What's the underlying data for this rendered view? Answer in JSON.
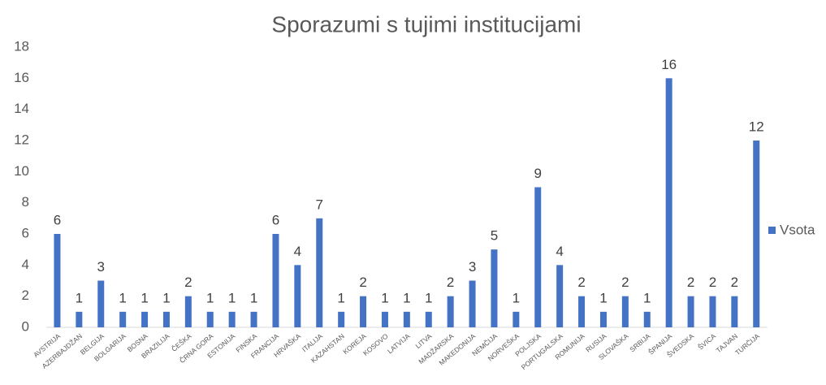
{
  "chart_data": {
    "type": "bar",
    "title": "Sporazumi s tujimi institucijami",
    "categories": [
      "AVSTRIJA",
      "AZERBAJDŽAN",
      "BELGIJA",
      "BOLGARIJA",
      "BOSNA",
      "BRAZILIJA",
      "ČEŠKA",
      "ČRNA GORA",
      "ESTONIJA",
      "FINSKA",
      "FRANCIJA",
      "HRVAŠKA",
      "ITALIJA",
      "KAZAHSTAN",
      "KOREJA",
      "KOSOVO",
      "LATVIJA",
      "LITVA",
      "MADŽARSKA",
      "MAKEDONIJA",
      "NEMČIJA",
      "NORVEŠKA",
      "POLJSKA",
      "PORTUGALSKA",
      "ROMUNIJA",
      "RUSIJA",
      "SLOVAŠKA",
      "SRBIJA",
      "ŠPANIJA",
      "ŠVEDSKA",
      "ŠVICA",
      "TAJVAN",
      "TURČIJA"
    ],
    "series": [
      {
        "name": "Vsota",
        "color": "#4472c4",
        "values": [
          6,
          1,
          3,
          1,
          1,
          1,
          2,
          1,
          1,
          1,
          6,
          4,
          7,
          1,
          2,
          1,
          1,
          1,
          2,
          3,
          5,
          1,
          9,
          4,
          2,
          1,
          2,
          1,
          16,
          2,
          2,
          2,
          12
        ]
      }
    ],
    "ylim": [
      0,
      18
    ],
    "yticks": [
      0,
      2,
      4,
      6,
      8,
      10,
      12,
      14,
      16,
      18
    ],
    "grid": false,
    "legend": "right"
  }
}
